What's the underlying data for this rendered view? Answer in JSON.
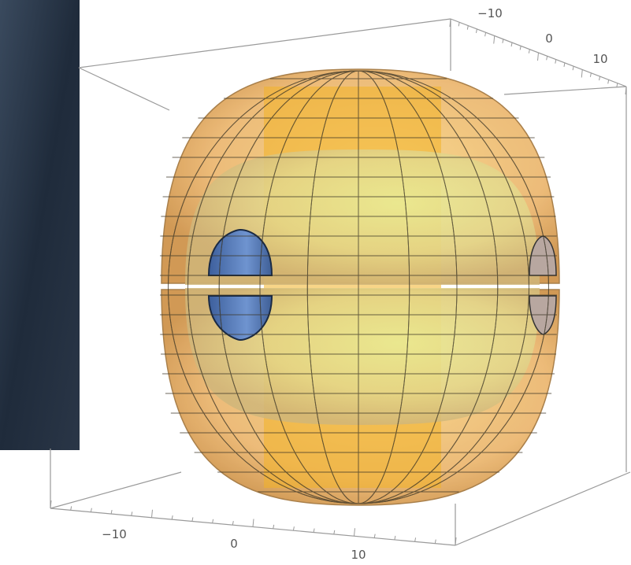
{
  "axes": {
    "depth_ticks": [
      "−10",
      "0",
      "10"
    ],
    "horizontal_ticks": [
      "−10",
      "0",
      "10"
    ]
  }
}
